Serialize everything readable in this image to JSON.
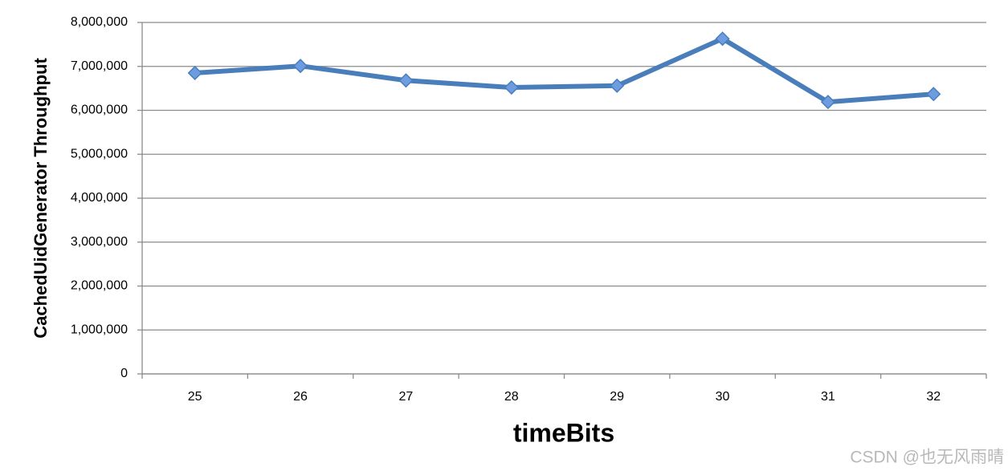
{
  "chart_data": {
    "type": "line",
    "x_label": "timeBits",
    "y_label": "CachedUidGenerator Throughput",
    "categories": [
      "25",
      "26",
      "27",
      "28",
      "29",
      "30",
      "31",
      "32"
    ],
    "values": [
      6850000,
      7010000,
      6680000,
      6520000,
      6560000,
      7630000,
      6190000,
      6370000
    ],
    "color": "#4a7ebb",
    "marker_color": "#6d9de0",
    "ylim": [
      0,
      8000000
    ],
    "yticks": [
      0,
      {
        "value": 1000000,
        "label": "1,000,000"
      },
      {
        "value": 2000000,
        "label": "2,000,000"
      },
      {
        "value": 3000000,
        "label": "3,000,000"
      },
      {
        "value": 4000000,
        "label": "4,000,000"
      },
      {
        "value": 5000000,
        "label": "5,000,000"
      },
      {
        "value": 6000000,
        "label": "6,000,000"
      },
      {
        "value": 7000000,
        "label": "7,000,000"
      },
      {
        "value": 8000000,
        "label": "8,000,000"
      }
    ],
    "grid": true,
    "watermark": "CSDN @也无风雨晴"
  }
}
